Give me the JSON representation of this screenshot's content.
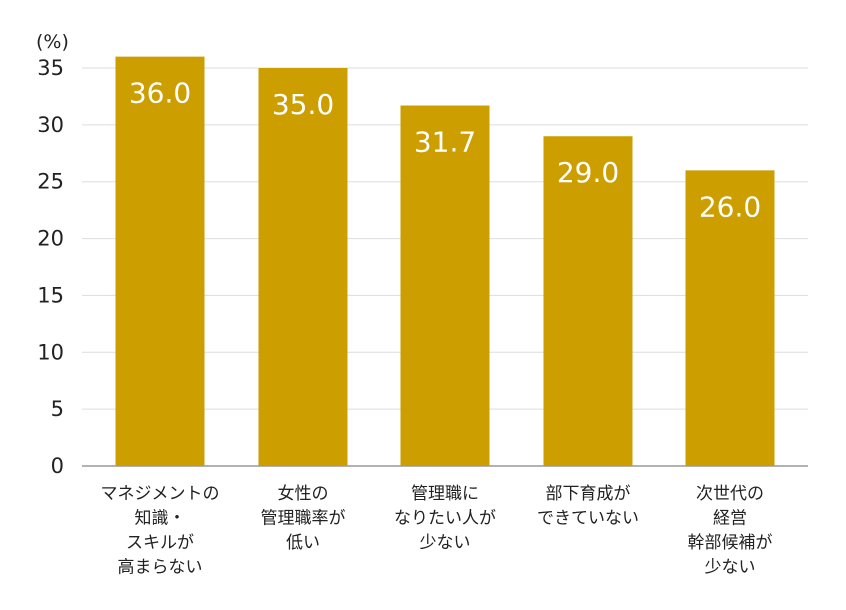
{
  "chart_data": {
    "type": "bar",
    "unit_label": "(%)",
    "categories": [
      [
        "マネジメントの",
        "知識・",
        "スキルが",
        "高まらない"
      ],
      [
        "女性の",
        "管理職率が",
        "低い"
      ],
      [
        "管理職に",
        "なりたい人が",
        "少ない"
      ],
      [
        "部下育成が",
        "できていない"
      ],
      [
        "次世代の",
        "経営",
        "幹部候補が",
        "少ない"
      ]
    ],
    "values": [
      36.0,
      35.0,
      31.7,
      29.0,
      26.0
    ],
    "value_labels": [
      "36.0",
      "35.0",
      "31.7",
      "29.0",
      "26.0"
    ],
    "yticks": [
      "0",
      "5",
      "10",
      "15",
      "20",
      "25",
      "30",
      "35"
    ],
    "ylim": [
      0,
      35
    ],
    "grid": true,
    "bar_color": "#cc9e00",
    "label_color": "#ffffff",
    "grid_color": "#dddddd",
    "axis_color": "#999999"
  }
}
